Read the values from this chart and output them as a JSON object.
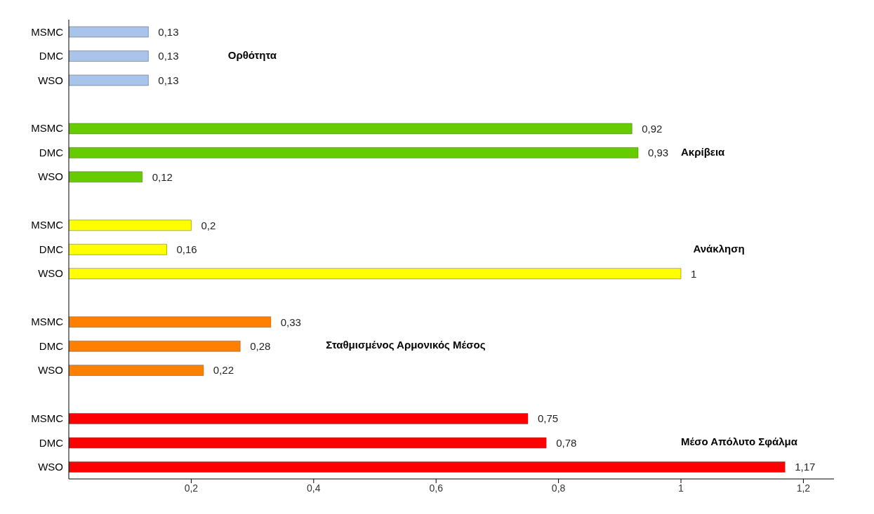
{
  "chart_data": {
    "type": "bar",
    "orientation": "horizontal",
    "categories": [
      "MSMC",
      "DMC",
      "WSO",
      null,
      "MSMC",
      "DMC",
      "WSO",
      null,
      "MSMC",
      "DMC",
      "WSO",
      null,
      "MSMC",
      "DMC",
      "WSO",
      null,
      "MSMC",
      "DMC",
      "WSO"
    ],
    "values": [
      0.13,
      0.13,
      0.13,
      null,
      0.92,
      0.93,
      0.12,
      null,
      0.2,
      0.16,
      1,
      null,
      0.33,
      0.28,
      0.22,
      null,
      0.75,
      0.78,
      1.17
    ],
    "value_labels": [
      "0,13",
      "0,13",
      "0,13",
      null,
      "0,92",
      "0,93",
      "0,12",
      null,
      "0,2",
      "0,16",
      "1",
      null,
      "0,33",
      "0,28",
      "0,22",
      null,
      "0,75",
      "0,78",
      "1,17"
    ],
    "colors": [
      "#a9c4eb",
      "#a9c4eb",
      "#a9c4eb",
      null,
      "#66cc00",
      "#66cc00",
      "#66cc00",
      null,
      "#ffff00",
      "#ffff00",
      "#ffff00",
      null,
      "#ff8000",
      "#ff8000",
      "#ff8000",
      null,
      "#ff0000",
      "#ff0000",
      "#ff0000"
    ],
    "xlim": [
      0,
      1.25
    ],
    "xticks": [
      {
        "value": 0.2,
        "label": "0,2"
      },
      {
        "value": 0.4,
        "label": "0,4"
      },
      {
        "value": 0.6,
        "label": "0,6"
      },
      {
        "value": 0.8,
        "label": "0,8"
      },
      {
        "value": 1,
        "label": "1"
      },
      {
        "value": 1.2,
        "label": "1,2"
      }
    ],
    "annotations": [
      "Ορθότητα",
      "Ακρίβεια",
      "Ανάκληση",
      "Σταθμισμένος Αρμονικός Μέσος",
      "Μέσο Απόλυτο Σφάλμα"
    ]
  }
}
